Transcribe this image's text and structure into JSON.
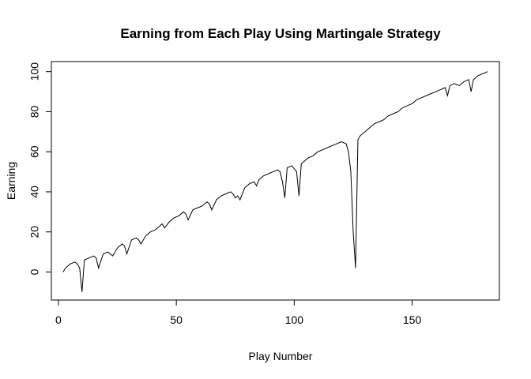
{
  "chart_data": {
    "type": "line",
    "title": "Earning from Each Play Using Martingale Strategy",
    "xlabel": "Play Number",
    "ylabel": "Earning",
    "xlim": [
      -3,
      187
    ],
    "ylim": [
      -14,
      105
    ],
    "xticks": [
      0,
      50,
      100,
      150
    ],
    "yticks": [
      0,
      20,
      40,
      60,
      80,
      100
    ],
    "grid": false,
    "legend": "none",
    "line_color": "#000000",
    "series": [
      {
        "x": [
          2,
          3,
          5,
          7,
          8,
          9,
          10,
          11,
          13,
          15,
          16,
          17,
          19,
          21,
          22,
          23,
          25,
          27,
          28,
          29,
          31,
          33,
          34,
          35,
          37,
          39,
          41,
          43,
          44,
          45,
          47,
          49,
          51,
          53,
          54,
          55,
          57,
          59,
          61,
          63,
          64,
          65,
          67,
          69,
          71,
          73,
          74,
          75,
          76,
          77,
          79,
          81,
          83,
          84,
          85,
          87,
          89,
          91,
          93,
          94,
          95,
          96,
          97,
          99,
          101,
          102,
          103,
          104,
          106,
          108,
          110,
          112,
          114,
          116,
          118,
          120,
          122,
          123,
          124,
          125,
          126,
          127,
          128,
          130,
          132,
          134,
          136,
          138,
          140,
          142,
          144,
          146,
          148,
          150,
          152,
          154,
          156,
          158,
          160,
          162,
          164,
          165,
          166,
          168,
          170,
          172,
          174,
          175,
          176,
          177,
          178,
          180,
          182
        ],
        "y": [
          0,
          2,
          4,
          5,
          4,
          2,
          -10,
          6,
          7,
          8,
          7,
          2,
          9,
          10,
          9,
          8,
          12,
          14,
          13,
          9,
          16,
          17,
          16,
          14,
          18,
          20,
          21,
          23,
          24,
          22,
          25,
          27,
          28,
          30,
          29,
          26,
          31,
          32,
          33,
          35,
          34,
          31,
          36,
          38,
          39,
          40,
          39,
          37,
          38,
          36,
          42,
          44,
          45,
          43,
          46,
          48,
          49,
          50,
          51,
          50,
          45,
          37,
          52,
          53,
          50,
          38,
          54,
          55,
          57,
          58,
          60,
          61,
          62,
          63,
          64,
          65,
          64,
          60,
          50,
          20,
          2,
          66,
          68,
          70,
          72,
          74,
          75,
          76,
          78,
          79,
          80,
          82,
          83,
          84,
          86,
          87,
          88,
          89,
          90,
          91,
          92,
          88,
          93,
          94,
          93,
          95,
          96,
          90,
          96,
          97,
          98,
          99,
          100
        ]
      }
    ]
  }
}
